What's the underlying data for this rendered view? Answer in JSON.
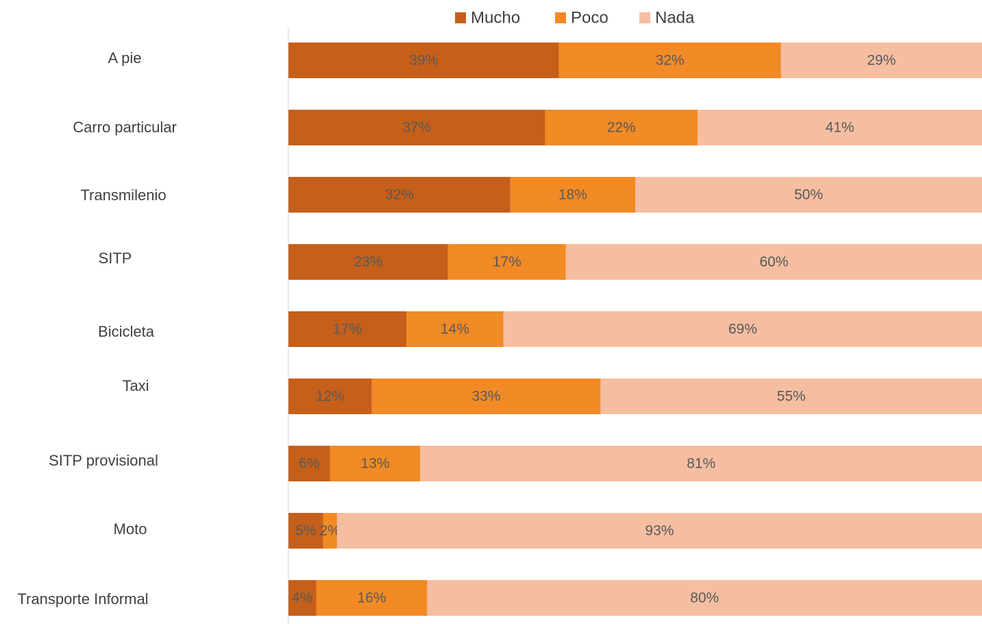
{
  "chart_data": {
    "type": "bar",
    "orientation": "horizontal",
    "stacked": true,
    "categories": [
      "A pie",
      "Carro particular",
      "Transmilenio",
      "SITP",
      "Bicicleta",
      "Taxi",
      "SITP provisional",
      "Moto",
      "Transporte Informal"
    ],
    "xlim": [
      0,
      100
    ],
    "legend": "top",
    "series": [
      {
        "name": "Mucho",
        "color": "#c55f1a",
        "values": [
          39,
          37,
          32,
          23,
          17,
          12,
          6,
          5,
          4
        ],
        "value_labels": [
          "39%",
          "37%",
          "32%",
          "23%",
          "17%",
          "12%",
          "6%",
          "5%",
          "4%"
        ]
      },
      {
        "name": "Poco",
        "color": "#f28a25",
        "values": [
          32,
          22,
          18,
          17,
          14,
          33,
          13,
          2,
          16
        ],
        "value_labels": [
          "32%",
          "22%",
          "18%",
          "17%",
          "14%",
          "33%",
          "13%",
          "2%",
          "16%"
        ]
      },
      {
        "name": "Nada",
        "color": "#f5bea1",
        "values": [
          29,
          41,
          50,
          60,
          69,
          55,
          81,
          93,
          80
        ],
        "value_labels": [
          "29%",
          "41%",
          "50%",
          "60%",
          "69%",
          "55%",
          "81%",
          "93%",
          "80%"
        ]
      }
    ]
  }
}
